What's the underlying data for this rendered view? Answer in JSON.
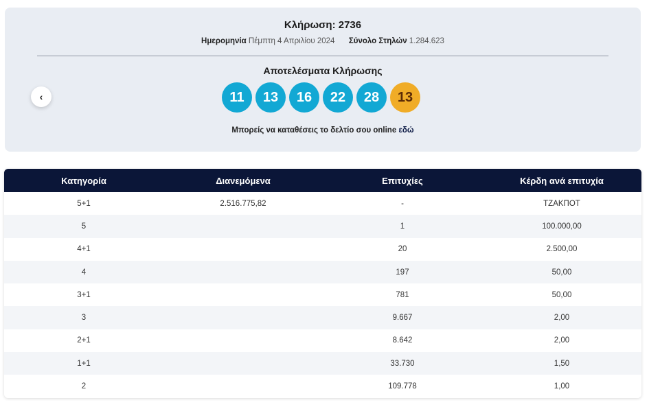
{
  "draw": {
    "title": "Κλήρωση: 2736",
    "date_label": "Ημερομηνία",
    "date_value": "Πέμπτη 4 Απριλίου 2024",
    "columns_label": "Σύνολο Στηλών",
    "columns_value": "1.284.623",
    "results_heading": "Αποτελέσματα Κλήρωσης",
    "prev_icon": "chevron-left-icon",
    "balls": [
      "11",
      "13",
      "16",
      "22",
      "28"
    ],
    "bonus_ball": "13",
    "online_text": "Μπορείς να καταθέσεις το δελτίο σου online",
    "online_link": "εδώ",
    "colors": {
      "ball": "#12a8d4",
      "bonus": "#f0ac27",
      "header": "#0b1638"
    }
  },
  "table": {
    "headers": [
      "Κατηγορία",
      "Διανεμόμενα",
      "Επιτυχίες",
      "Κέρδη ανά επιτυχία"
    ],
    "rows": [
      [
        "5+1",
        "2.516.775,82",
        "-",
        "ΤΖΑΚΠΟΤ"
      ],
      [
        "5",
        "",
        "1",
        "100.000,00"
      ],
      [
        "4+1",
        "",
        "20",
        "2.500,00"
      ],
      [
        "4",
        "",
        "197",
        "50,00"
      ],
      [
        "3+1",
        "",
        "781",
        "50,00"
      ],
      [
        "3",
        "",
        "9.667",
        "2,00"
      ],
      [
        "2+1",
        "",
        "8.642",
        "2,00"
      ],
      [
        "1+1",
        "",
        "33.730",
        "1,50"
      ],
      [
        "2",
        "",
        "109.778",
        "1,00"
      ]
    ]
  }
}
